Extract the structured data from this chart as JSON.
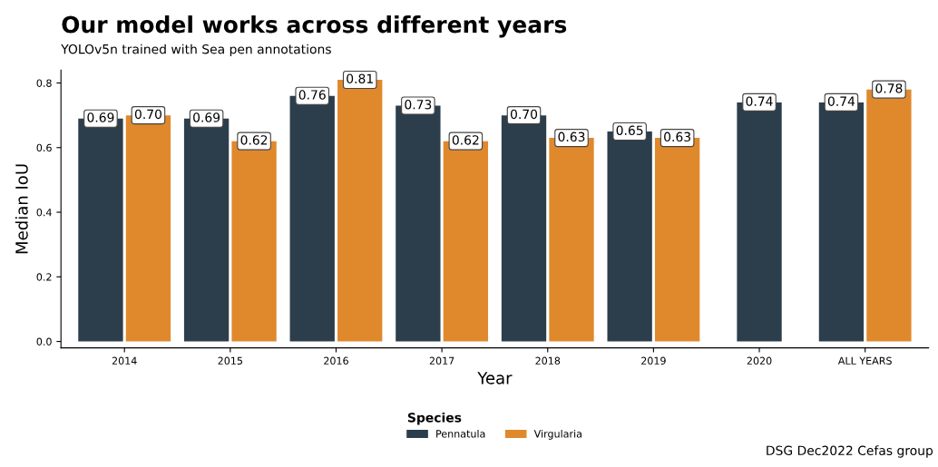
{
  "chart_data": {
    "type": "bar",
    "title": "Our model works across different years",
    "subtitle": "YOLOv5n trained with Sea pen annotations",
    "xlabel": "Year",
    "ylabel": "Median IoU",
    "legend_title": "Species",
    "categories": [
      "2014",
      "2015",
      "2016",
      "2017",
      "2018",
      "2019",
      "2020",
      "ALL YEARS"
    ],
    "series": [
      {
        "name": "Pennatula",
        "color": "#2c3e4c",
        "values": [
          0.69,
          0.69,
          0.76,
          0.73,
          0.7,
          0.65,
          0.74,
          0.74
        ],
        "value_labels": [
          "0.69",
          "0.69",
          "0.76",
          "0.73",
          "0.70",
          "0.65",
          "0.74",
          "0.74"
        ]
      },
      {
        "name": "Virgularia",
        "color": "#e0892c",
        "values": [
          0.7,
          0.62,
          0.81,
          0.62,
          0.63,
          0.63,
          null,
          0.78
        ],
        "value_labels": [
          "0.70",
          "0.62",
          "0.81",
          "0.62",
          "0.63",
          "0.63",
          null,
          "0.78"
        ]
      }
    ],
    "ylim": [
      -0.02,
      0.84
    ],
    "yticks": [
      {
        "value": 0,
        "label": "0.0"
      },
      0.2,
      0.4,
      0.6,
      0.8
    ],
    "grid": false,
    "legend": "bottom",
    "annotations": [
      "DSG Dec2022 Cefas group"
    ]
  }
}
